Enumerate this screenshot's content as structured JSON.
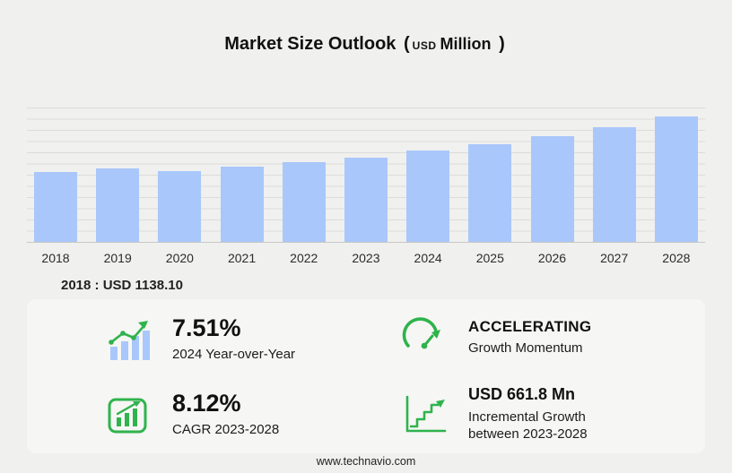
{
  "title": {
    "main": "Market Size Outlook",
    "paren_open": "(",
    "unit_small": "USD",
    "unit_big": "Million",
    "paren_close": ")"
  },
  "chart_data": {
    "type": "bar",
    "title": "Market Size Outlook (USD Million)",
    "categories": [
      "2018",
      "2019",
      "2020",
      "2021",
      "2022",
      "2023",
      "2024",
      "2025",
      "2026",
      "2027",
      "2028"
    ],
    "values": [
      1138.1,
      1210,
      1165,
      1235,
      1310,
      1385.4,
      1489.5,
      1600,
      1735,
      1880,
      2047.2
    ],
    "xlabel": "",
    "ylabel": "USD Million",
    "ylim": [
      0,
      2200
    ],
    "grid": true,
    "legend": "none",
    "bar_color": "#a9c7fa"
  },
  "annotation": {
    "base_year_value": "2018 : USD  1138.10"
  },
  "stats": [
    {
      "icon": "yoy-bars-trend-icon",
      "value": "7.51%",
      "label": "2024 Year-over-Year"
    },
    {
      "icon": "speedometer-icon",
      "value": "ACCELERATING",
      "label": "Growth Momentum"
    },
    {
      "icon": "cagr-chart-icon",
      "value": "8.12%",
      "label": "CAGR 2023-2028"
    },
    {
      "icon": "incremental-growth-icon",
      "value": "USD 661.8 Mn",
      "label": "Incremental Growth between 2023-2028"
    }
  ],
  "footer": {
    "url": "www.technavio.com"
  },
  "colors": {
    "accent_green": "#2fb34c",
    "bar_blue": "#a9c7fa",
    "background": "#f0f0ee"
  }
}
